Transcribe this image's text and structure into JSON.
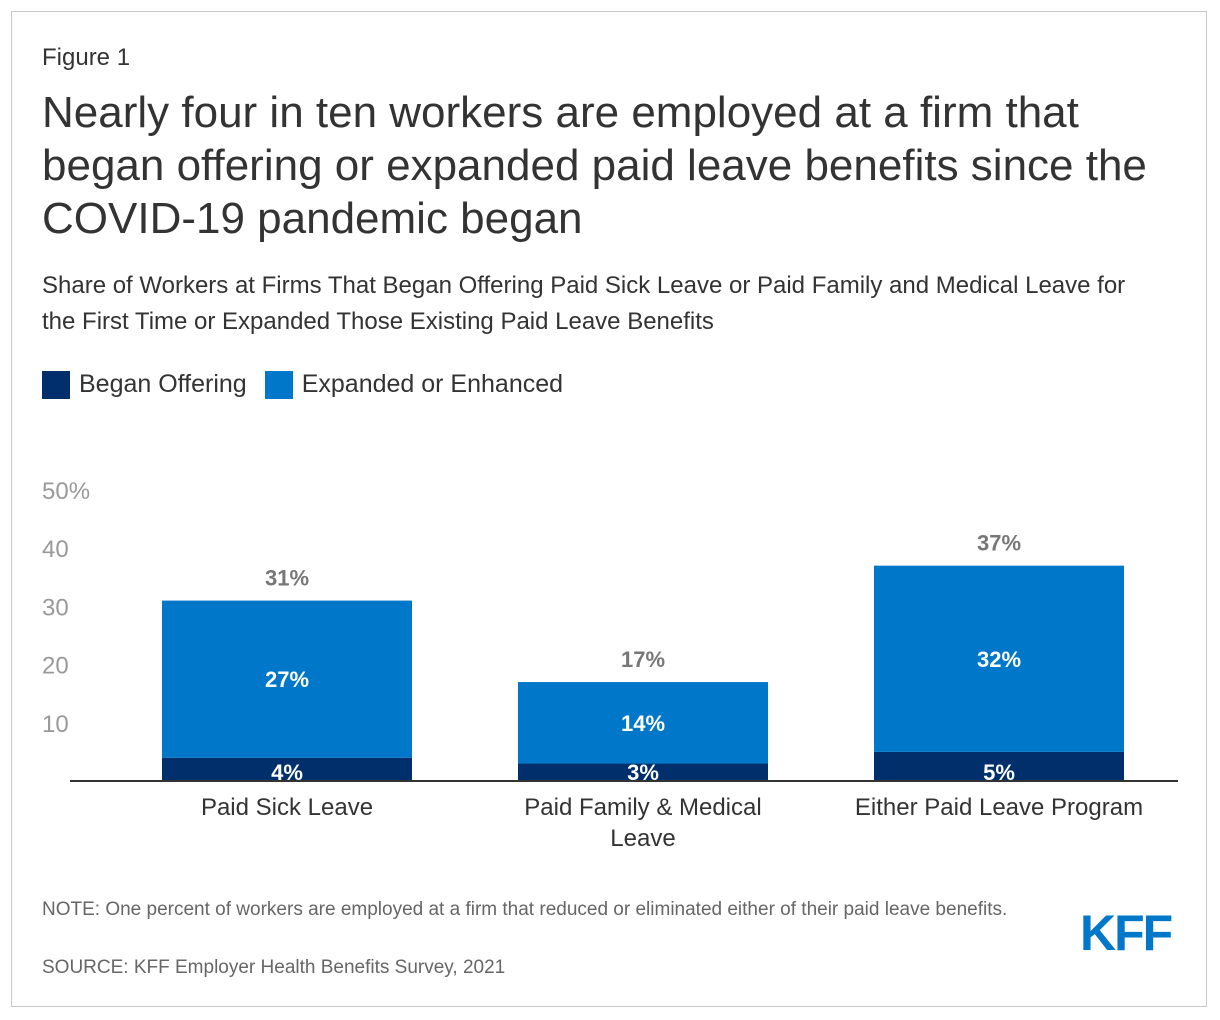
{
  "figure_label": "Figure 1",
  "title": "Nearly four in ten workers are employed at a firm that began offering or expanded paid leave benefits since the COVID-19 pandemic began",
  "subtitle": "Share of Workers at Firms That Began Offering Paid Sick Leave or Paid Family and Medical Leave for the First Time or Expanded Those Existing Paid Leave Benefits",
  "note": "NOTE: One percent of workers are employed at a firm that reduced or eliminated either of their paid leave benefits.",
  "source": "SOURCE: KFF Employer Health Benefits Survey, 2021",
  "logo": {
    "text": "KFF",
    "color": "#0077c8"
  },
  "colors": {
    "began": "#002f6c",
    "expanded": "#0077c8",
    "axis_text": "#999999",
    "total_label": "#777777"
  },
  "chart_data": {
    "type": "bar",
    "stacked": true,
    "categories": [
      "Paid Sick Leave",
      "Paid Family & Medical Leave",
      "Either Paid Leave Program"
    ],
    "category_lines": [
      [
        "Paid Sick Leave"
      ],
      [
        "Paid Family & Medical",
        "Leave"
      ],
      [
        "Either Paid Leave Program"
      ]
    ],
    "series": [
      {
        "name": "Began Offering",
        "values": [
          4,
          3,
          5
        ],
        "labels": [
          "4%",
          "3%",
          "5%"
        ]
      },
      {
        "name": "Expanded or Enhanced",
        "values": [
          27,
          14,
          32
        ],
        "labels": [
          "27%",
          "14%",
          "32%"
        ]
      }
    ],
    "totals": [
      31,
      17,
      37
    ],
    "total_labels": [
      "31%",
      "17%",
      "37%"
    ],
    "ylim": [
      0,
      50
    ],
    "yticks": [
      10,
      20,
      30,
      40,
      50
    ],
    "ytick_labels": [
      "10",
      "20",
      "30",
      "40",
      "50%"
    ],
    "legend_position": "top-left",
    "grid": false
  }
}
